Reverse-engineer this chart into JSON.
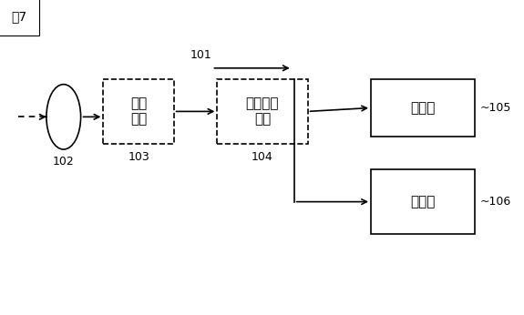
{
  "title": "図7",
  "background_color": "#ffffff",
  "label_101": "101",
  "label_102": "102",
  "label_103": "103",
  "label_104": "104",
  "label_105": "~105",
  "label_106": "~106",
  "text_103": "撮像\n素子",
  "text_104": "信号処理\n回路",
  "text_105": "モニタ",
  "text_106": "メモリ",
  "font_size_labels": 9,
  "font_size_box": 11,
  "font_size_title": 10
}
